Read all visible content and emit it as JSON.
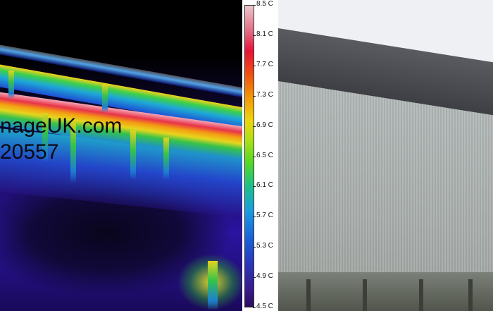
{
  "watermark": {
    "line1": "nageUK.com",
    "line2": "20557"
  },
  "scale": {
    "labels": [
      "8.5 C",
      "8.1 C",
      "7.7 C",
      "7.3 C",
      "6.9 C",
      "6.5 C",
      "6.1 C",
      "5.7 C",
      "5.3 C",
      "4.9 C",
      "4.5 C"
    ]
  },
  "palette": {
    "hot": "#ecc7cd",
    "mid": "#efd40b",
    "cool": "#1a9ce0",
    "cold": "#2a0d5c"
  }
}
